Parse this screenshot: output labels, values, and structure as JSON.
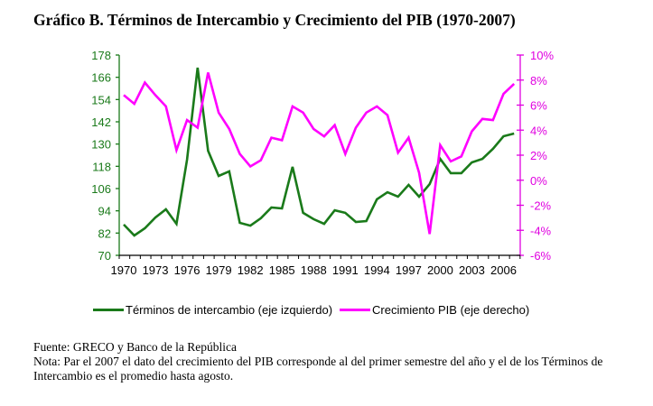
{
  "title": "Gráfico B. Términos de Intercambio y Crecimiento del PIB (1970-2007)",
  "colors": {
    "terms": "#1a7a1a",
    "gdp": "#ff00ff",
    "left_axis": "#1a7a1a",
    "right_axis": "#e000e0"
  },
  "chart_data": {
    "type": "line",
    "title": "Gráfico B. Términos de Intercambio y Crecimiento del PIB (1970-2007)",
    "x": [
      1970,
      1971,
      1972,
      1973,
      1974,
      1975,
      1976,
      1977,
      1978,
      1979,
      1980,
      1981,
      1982,
      1983,
      1984,
      1985,
      1986,
      1987,
      1988,
      1989,
      1990,
      1991,
      1992,
      1993,
      1994,
      1995,
      1996,
      1997,
      1998,
      1999,
      2000,
      2001,
      2002,
      2003,
      2004,
      2005,
      2006,
      2007
    ],
    "x_tick_labels": [
      "1970",
      "1973",
      "1976",
      "1979",
      "1982",
      "1985",
      "1988",
      "1991",
      "1994",
      "1997",
      "2000",
      "2003",
      "2006"
    ],
    "left_axis": {
      "ylim": [
        70,
        178
      ],
      "tick_labels": [
        "70",
        "82",
        "94",
        "106",
        "118",
        "130",
        "142",
        "154",
        "166",
        "178"
      ]
    },
    "right_axis": {
      "ylim": [
        -6,
        10
      ],
      "tick_labels": [
        "-6%",
        "-4%",
        "-2%",
        "0%",
        "2%",
        "4%",
        "6%",
        "8%",
        "10%"
      ]
    },
    "series": [
      {
        "name": "Términos de intercambio (eje izquierdo)",
        "axis": "left",
        "values": [
          86.6,
          80.7,
          84.6,
          90.4,
          94.8,
          87,
          121.6,
          171.2,
          126.4,
          112.8,
          115.3,
          87.5,
          86,
          90,
          95.8,
          95.3,
          117.7,
          92.9,
          89.5,
          87,
          94.3,
          92.9,
          88,
          88.5,
          100.2,
          104,
          101.6,
          108,
          101.6,
          108.4,
          122,
          114.3,
          114.3,
          120.1,
          122,
          127.4,
          134.2,
          135.7
        ]
      },
      {
        "name": "Crecimiento PIB (eje derecho)",
        "axis": "right",
        "values": [
          6.8,
          6.1,
          7.8,
          6.8,
          5.9,
          2.4,
          4.8,
          4.2,
          8.6,
          5.4,
          4.1,
          2.1,
          1.1,
          1.6,
          3.4,
          3.2,
          5.9,
          5.4,
          4.1,
          3.5,
          4.4,
          2.1,
          4.2,
          5.4,
          5.9,
          5.2,
          2.2,
          3.4,
          0.6,
          -4.3,
          2.8,
          1.5,
          1.9,
          3.9,
          4.9,
          4.8,
          6.9,
          7.7
        ]
      }
    ],
    "legend": "bottom",
    "grid": false
  },
  "legend": {
    "terms_label": "Términos de intercambio (eje izquierdo)",
    "gdp_label": "Crecimiento PIB (eje derecho)"
  },
  "notes": {
    "source": "Fuente: GRECO y Banco de la República",
    "note": "Nota: Par el 2007 el dato del crecimiento del PIB corresponde al del primer semestre del año y el de los Términos de Intercambio es el promedio hasta agosto."
  }
}
